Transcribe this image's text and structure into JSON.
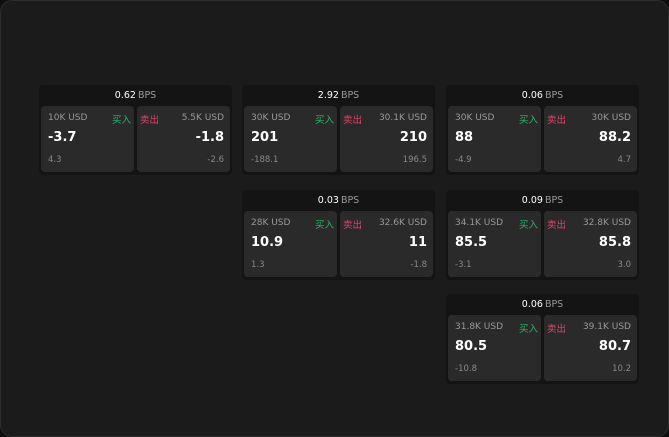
{
  "cards": [
    {
      "bps": "0.62",
      "unit": "BPS",
      "buy": {
        "size": "10K USD",
        "label": "买入",
        "price": "-3.7",
        "change": "4.3"
      },
      "sell": {
        "size": "5.5K USD",
        "label": "卖出",
        "price": "-1.8",
        "change": "-2.6"
      }
    },
    {
      "bps": "2.92",
      "unit": "BPS",
      "buy": {
        "size": "30K USD",
        "label": "买入",
        "price": "201",
        "change": "-188.1"
      },
      "sell": {
        "size": "30.1K USD",
        "label": "卖出",
        "price": "210",
        "change": "196.5"
      }
    },
    {
      "bps": "0.06",
      "unit": "BPS",
      "buy": {
        "size": "30K USD",
        "label": "买入",
        "price": "88",
        "change": "-4.9"
      },
      "sell": {
        "size": "30K USD",
        "label": "卖出",
        "price": "88.2",
        "change": "4.7"
      }
    },
    {
      "bps": "0.03",
      "unit": "BPS",
      "buy": {
        "size": "28K USD",
        "label": "买入",
        "price": "10.9",
        "change": "1.3"
      },
      "sell": {
        "size": "32.6K USD",
        "label": "卖出",
        "price": "11",
        "change": "-1.8"
      }
    },
    {
      "bps": "0.09",
      "unit": "BPS",
      "buy": {
        "size": "34.1K USD",
        "label": "买入",
        "price": "85.5",
        "change": "-3.1"
      },
      "sell": {
        "size": "32.8K USD",
        "label": "卖出",
        "price": "85.8",
        "change": "3.0"
      }
    },
    {
      "bps": "0.06",
      "unit": "BPS",
      "buy": {
        "size": "31.8K USD",
        "label": "买入",
        "price": "80.5",
        "change": "-10.8"
      },
      "sell": {
        "size": "39.1K USD",
        "label": "卖出",
        "price": "80.7",
        "change": "10.2"
      }
    }
  ],
  "colors": {
    "buy": "#2fb36a",
    "sell": "#e0436b",
    "background": "#1b1b1b"
  }
}
